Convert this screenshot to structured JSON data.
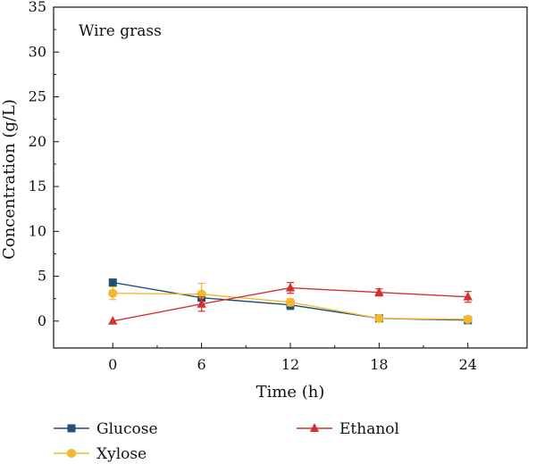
{
  "chart_data": {
    "type": "line",
    "annotation": "Wire grass",
    "xlabel": "Time (h)",
    "ylabel": "Concentration (g/L)",
    "x": [
      0,
      6,
      12,
      18,
      24
    ],
    "xlim": [
      -4,
      28
    ],
    "ylim": [
      -3,
      35
    ],
    "xticks": [
      0,
      6,
      12,
      18,
      24
    ],
    "yticks": [
      0,
      5,
      10,
      15,
      20,
      25,
      30,
      35
    ],
    "grid": false,
    "legend_position": "bottom",
    "series": [
      {
        "name": "Glucose",
        "marker": "square",
        "color": "#1f4e79",
        "values": [
          4.3,
          2.6,
          1.8,
          0.3,
          0.1
        ],
        "errors": [
          0,
          0.3,
          0.5,
          0.2,
          0.1
        ]
      },
      {
        "name": "Xylose",
        "marker": "circle",
        "color": "#f2b830",
        "values": [
          3.1,
          3.0,
          2.1,
          0.3,
          0.2
        ],
        "errors": [
          0.7,
          1.2,
          0.4,
          0.2,
          0.1
        ]
      },
      {
        "name": "Ethanol",
        "marker": "triangle",
        "color": "#d1332e",
        "values": [
          0.0,
          1.9,
          3.7,
          3.2,
          2.7
        ],
        "errors": [
          0,
          0.8,
          0.6,
          0.4,
          0.6
        ]
      }
    ]
  }
}
